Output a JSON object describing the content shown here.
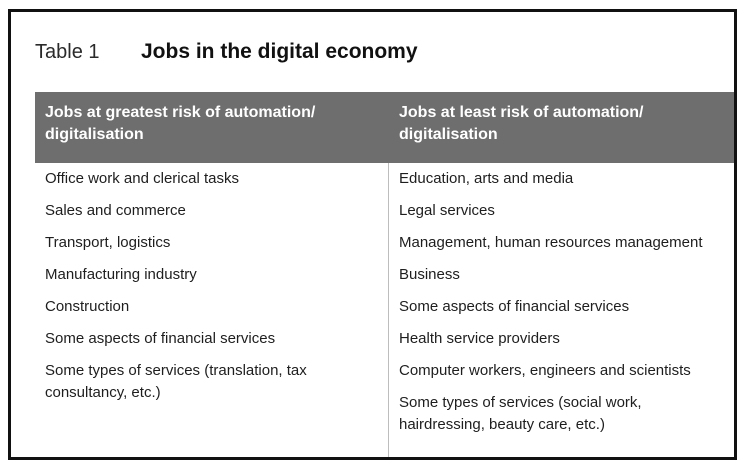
{
  "table": {
    "number": "Table 1",
    "title": "Jobs in the digital economy",
    "headers": {
      "left": "Jobs at greatest risk of automation/ digitalisation",
      "right": "Jobs at least risk of automation/ digitalisation"
    },
    "left_items": [
      "Office work and clerical tasks",
      "Sales and commerce",
      "Transport, logistics",
      "Manufacturing industry",
      "Construction",
      "Some aspects of financial services",
      "Some types of services (translation, tax consultancy, etc.)"
    ],
    "right_items": [
      "Education, arts and media",
      "Legal services",
      "Management, human resources management",
      "Business",
      "Some aspects of financial services",
      "Health service providers",
      "Computer workers, engineers and scientists",
      "Some types of services (social work, hairdressing, beauty care, etc.)"
    ]
  }
}
